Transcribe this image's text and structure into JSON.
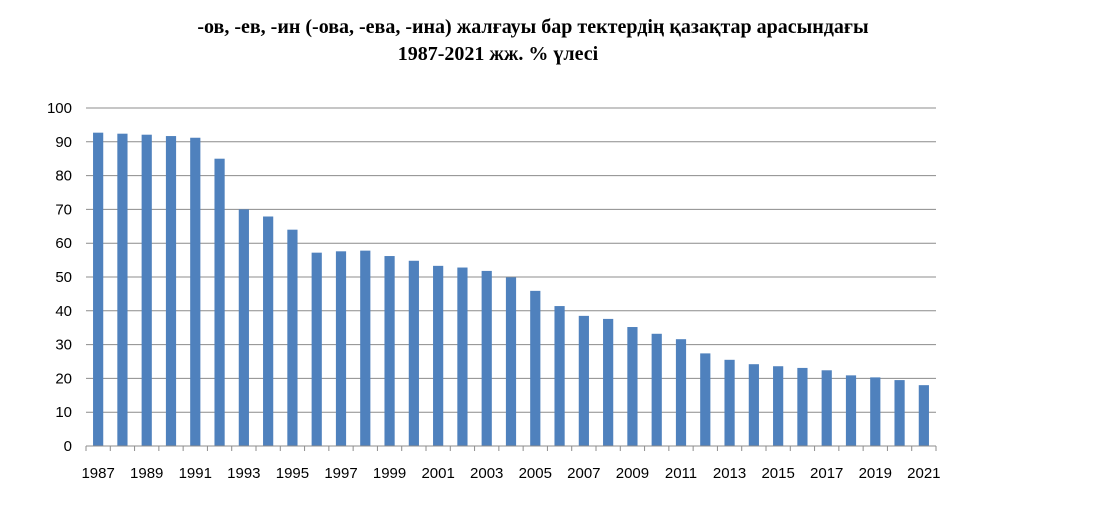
{
  "chart_data": {
    "type": "bar",
    "title_line1": "-ов, -ев, -ин (-ова, -ева, -ина) жалғауы бар тектердің қазақтар арасындағы",
    "title_line2": "1987-2021 жж. % үлесі",
    "xlabel": "",
    "ylabel": "",
    "ylim": [
      0,
      100
    ],
    "yticks": [
      0,
      10,
      20,
      30,
      40,
      50,
      60,
      70,
      80,
      90,
      100
    ],
    "grid": true,
    "legend": "none",
    "bar_color": "#4f81bd",
    "categories": [
      "1987",
      "1988",
      "1989",
      "1990",
      "1991",
      "1992",
      "1993",
      "1994",
      "1995",
      "1996",
      "1997",
      "1998",
      "1999",
      "2000",
      "2001",
      "2002",
      "2003",
      "2004",
      "2005",
      "2006",
      "2007",
      "2008",
      "2009",
      "2010",
      "2011",
      "2012",
      "2013",
      "2014",
      "2015",
      "2016",
      "2017",
      "2018",
      "2019",
      "2020",
      "2021"
    ],
    "x_tick_labels": [
      "1987",
      "",
      "1989",
      "",
      "1991",
      "",
      "1993",
      "",
      "1995",
      "",
      "1997",
      "",
      "1999",
      "",
      "2001",
      "",
      "2003",
      "",
      "2005",
      "",
      "2007",
      "",
      "2009",
      "",
      "2011",
      "",
      "2013",
      "",
      "2015",
      "",
      "2017",
      "",
      "2019",
      "",
      "2021"
    ],
    "values": [
      92.7,
      92.4,
      92.1,
      91.7,
      91.2,
      85.0,
      70.0,
      67.9,
      64.0,
      57.2,
      57.6,
      57.8,
      56.2,
      54.8,
      53.3,
      52.8,
      51.8,
      49.9,
      45.9,
      41.4,
      38.5,
      37.6,
      35.2,
      33.2,
      31.6,
      27.4,
      25.5,
      24.2,
      23.6,
      23.1,
      22.4,
      20.9,
      20.3,
      19.5,
      18.0
    ]
  }
}
